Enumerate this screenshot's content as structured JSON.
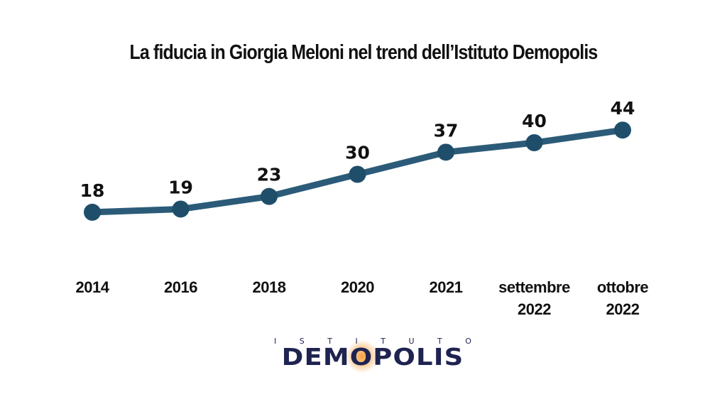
{
  "chart_data": {
    "type": "line",
    "title": "La fiducia in Giorgia Meloni nel trend dell’Istituto Demopolis",
    "categories": [
      "2014",
      "2016",
      "2018",
      "2020",
      "2021",
      "settembre 2022",
      "ottobre 2022"
    ],
    "category_lines": [
      [
        "2014"
      ],
      [
        "2016"
      ],
      [
        "2018"
      ],
      [
        "2020"
      ],
      [
        "2021"
      ],
      [
        "settembre",
        "2022"
      ],
      [
        "ottobre",
        "2022"
      ]
    ],
    "values": [
      18,
      19,
      23,
      30,
      37,
      40,
      44
    ],
    "data_labels": [
      "18",
      "19",
      "23",
      "30",
      "37",
      "40",
      "44"
    ],
    "xlabel": "",
    "ylabel": "",
    "grid": false,
    "axes_visible": false,
    "series_color": "#2b5b78",
    "marker_color": "#1f4e6b"
  },
  "logo": {
    "top_text": [
      "I",
      "S",
      "T",
      "I",
      "T",
      "U",
      "T",
      "O"
    ],
    "main_text": "DEMOPOLIS",
    "color": "#1e2350",
    "accent": "#f0901e"
  }
}
